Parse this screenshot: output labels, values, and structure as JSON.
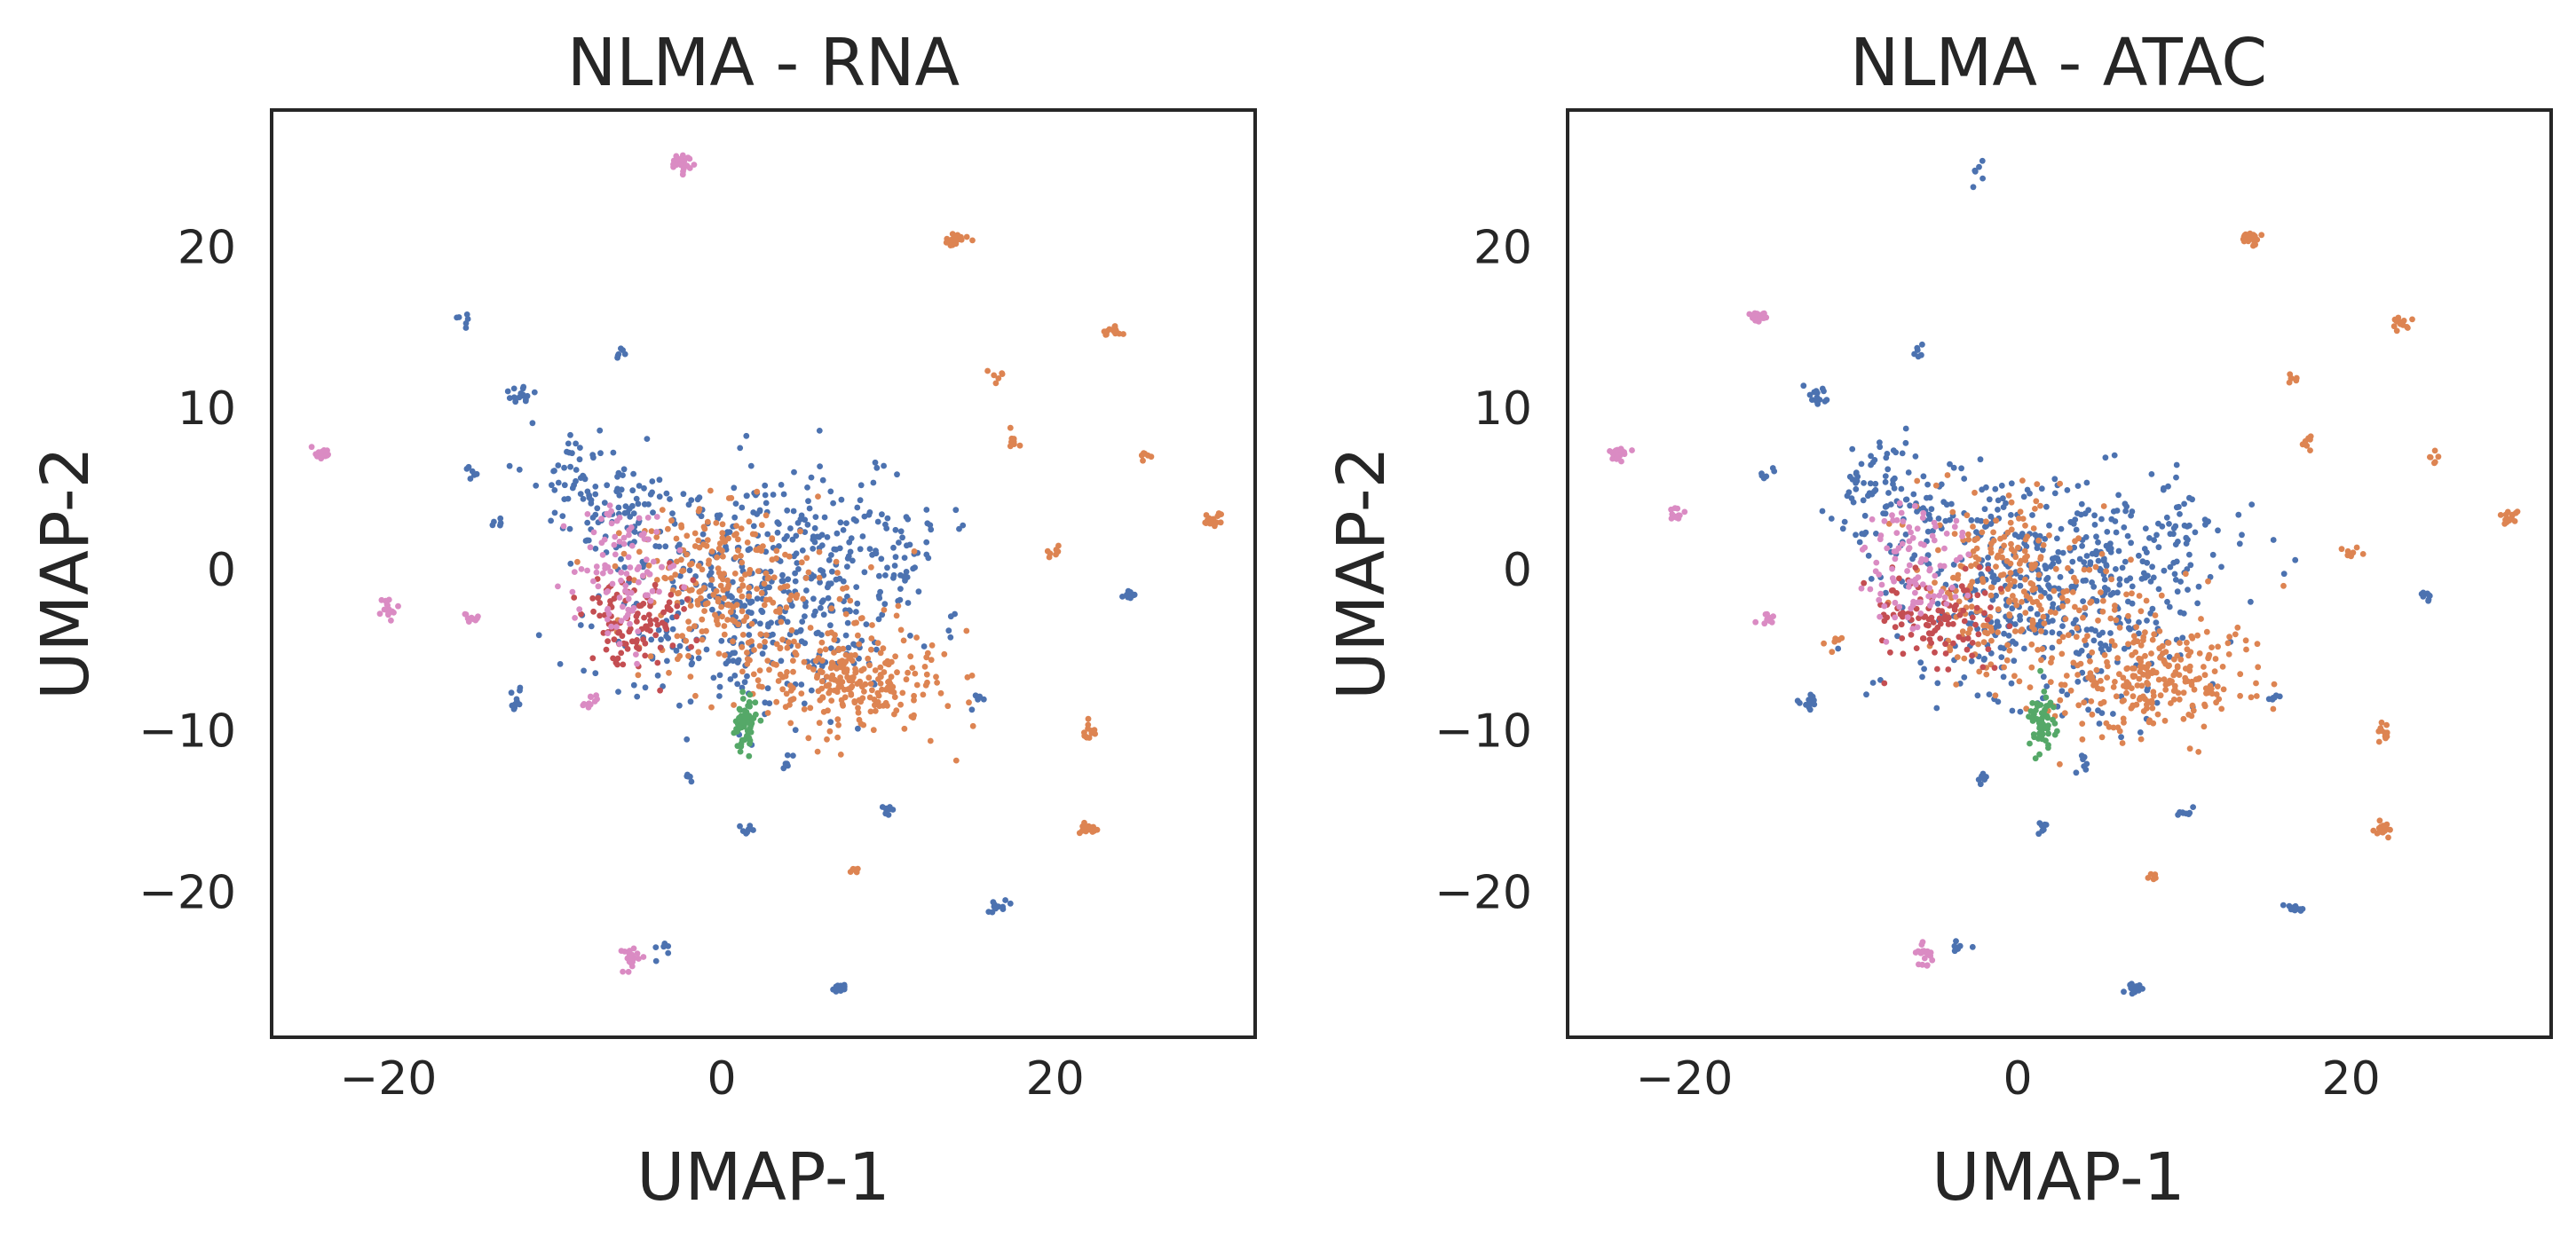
{
  "chart_data": [
    {
      "type": "scatter",
      "title": "NLMA - RNA",
      "xlabel": "UMAP-1",
      "ylabel": "UMAP-2",
      "xlim": [
        -27,
        32
      ],
      "ylim": [
        -29,
        28.5
      ],
      "xticks": [
        -20,
        0,
        20
      ],
      "xtick_labels": [
        "−20",
        "0",
        "20"
      ],
      "yticks": [
        -20,
        -10,
        0,
        10,
        20
      ],
      "ytick_labels": [
        "−20",
        "−10",
        "0",
        "10",
        "20"
      ],
      "grid": false,
      "legend": "none",
      "colors": [
        "#4c72b0",
        "#dd8452",
        "#55a868",
        "#c44e52",
        "#da8bc3"
      ],
      "clusters": [
        {
          "x": 2,
          "y": -2,
          "sx": 4.5,
          "sy": 3.5,
          "n": 420,
          "color": "#4c72b0"
        },
        {
          "x": -5,
          "y": 3,
          "sx": 2.5,
          "sy": 2,
          "n": 70,
          "color": "#4c72b0"
        },
        {
          "x": -8,
          "y": 5,
          "sx": 1.5,
          "sy": 2,
          "n": 60,
          "color": "#4c72b0"
        },
        {
          "x": 8,
          "y": 2,
          "sx": 3.5,
          "sy": 2,
          "n": 90,
          "color": "#4c72b0"
        },
        {
          "x": 8,
          "y": -7,
          "sx": 3,
          "sy": 1.6,
          "n": 230,
          "color": "#dd8452"
        },
        {
          "x": -1,
          "y": 0,
          "sx": 2.5,
          "sy": 2.5,
          "n": 170,
          "color": "#dd8452"
        },
        {
          "x": 3,
          "y": -3,
          "sx": 4,
          "sy": 2.5,
          "n": 110,
          "color": "#dd8452"
        },
        {
          "x": -5,
          "y": -3,
          "sx": 1.8,
          "sy": 1.5,
          "n": 110,
          "color": "#c44e52"
        },
        {
          "x": -6,
          "y": -1,
          "sx": 1.5,
          "sy": 1.5,
          "n": 70,
          "color": "#da8bc3"
        },
        {
          "x": -6,
          "y": 2.5,
          "sx": 1.2,
          "sy": 0.9,
          "n": 30,
          "color": "#da8bc3"
        },
        {
          "x": 1.5,
          "y": -9.5,
          "sx": 0.35,
          "sy": 0.9,
          "n": 60,
          "color": "#55a868"
        },
        {
          "x": -2.5,
          "y": 25.2,
          "sx": 0.3,
          "sy": 0.2,
          "n": 30,
          "color": "#da8bc3"
        },
        {
          "x": 14,
          "y": 20.5,
          "sx": 0.3,
          "sy": 0.2,
          "n": 25,
          "color": "#dd8452"
        },
        {
          "x": -24,
          "y": 7.2,
          "sx": 0.3,
          "sy": 0.2,
          "n": 25,
          "color": "#da8bc3"
        },
        {
          "x": 23.5,
          "y": 14.8,
          "sx": 0.3,
          "sy": 0.2,
          "n": 15,
          "color": "#dd8452"
        },
        {
          "x": 29.5,
          "y": 3,
          "sx": 0.3,
          "sy": 0.2,
          "n": 15,
          "color": "#dd8452"
        },
        {
          "x": -12,
          "y": 10.8,
          "sx": 0.4,
          "sy": 0.3,
          "n": 15,
          "color": "#4c72b0"
        },
        {
          "x": -15.5,
          "y": 15.5,
          "sx": 0.2,
          "sy": 0.2,
          "n": 6,
          "color": "#4c72b0"
        },
        {
          "x": -6,
          "y": 13.5,
          "sx": 0.2,
          "sy": 0.2,
          "n": 6,
          "color": "#4c72b0"
        },
        {
          "x": -20,
          "y": -2.3,
          "sx": 0.3,
          "sy": 0.4,
          "n": 15,
          "color": "#da8bc3"
        },
        {
          "x": -15,
          "y": -3,
          "sx": 0.3,
          "sy": 0.2,
          "n": 10,
          "color": "#da8bc3"
        },
        {
          "x": -12.5,
          "y": -8.2,
          "sx": 0.3,
          "sy": 0.3,
          "n": 12,
          "color": "#4c72b0"
        },
        {
          "x": -15,
          "y": 6,
          "sx": 0.2,
          "sy": 0.2,
          "n": 6,
          "color": "#4c72b0"
        },
        {
          "x": -13.5,
          "y": 2.8,
          "sx": 0.2,
          "sy": 0.2,
          "n": 5,
          "color": "#4c72b0"
        },
        {
          "x": -8,
          "y": -8.2,
          "sx": 0.3,
          "sy": 0.3,
          "n": 10,
          "color": "#da8bc3"
        },
        {
          "x": -5.5,
          "y": -24,
          "sx": 0.3,
          "sy": 0.4,
          "n": 20,
          "color": "#da8bc3"
        },
        {
          "x": 7,
          "y": -26,
          "sx": 0.3,
          "sy": 0.2,
          "n": 15,
          "color": "#4c72b0"
        },
        {
          "x": 1.5,
          "y": -16,
          "sx": 0.2,
          "sy": 0.2,
          "n": 8,
          "color": "#4c72b0"
        },
        {
          "x": 16.5,
          "y": -21,
          "sx": 0.3,
          "sy": 0.2,
          "n": 12,
          "color": "#4c72b0"
        },
        {
          "x": 22,
          "y": -16,
          "sx": 0.3,
          "sy": 0.2,
          "n": 14,
          "color": "#dd8452"
        },
        {
          "x": 22,
          "y": -10,
          "sx": 0.3,
          "sy": 0.3,
          "n": 12,
          "color": "#dd8452"
        },
        {
          "x": 24.5,
          "y": -1.5,
          "sx": 0.2,
          "sy": 0.2,
          "n": 10,
          "color": "#4c72b0"
        },
        {
          "x": 20,
          "y": 1,
          "sx": 0.3,
          "sy": 0.2,
          "n": 8,
          "color": "#dd8452"
        },
        {
          "x": 17.5,
          "y": 8,
          "sx": 0.2,
          "sy": 0.3,
          "n": 8,
          "color": "#dd8452"
        },
        {
          "x": 16.5,
          "y": 12,
          "sx": 0.2,
          "sy": 0.2,
          "n": 6,
          "color": "#dd8452"
        },
        {
          "x": 10,
          "y": -15,
          "sx": 0.3,
          "sy": 0.2,
          "n": 8,
          "color": "#4c72b0"
        },
        {
          "x": 8,
          "y": -18.7,
          "sx": 0.2,
          "sy": 0.2,
          "n": 6,
          "color": "#dd8452"
        },
        {
          "x": 25.5,
          "y": 7,
          "sx": 0.2,
          "sy": 0.2,
          "n": 6,
          "color": "#dd8452"
        },
        {
          "x": 15.5,
          "y": -8,
          "sx": 0.2,
          "sy": 0.3,
          "n": 6,
          "color": "#4c72b0"
        },
        {
          "x": -2,
          "y": -13,
          "sx": 0.2,
          "sy": 0.2,
          "n": 6,
          "color": "#4c72b0"
        },
        {
          "x": 4,
          "y": -12,
          "sx": 0.2,
          "sy": 0.3,
          "n": 6,
          "color": "#4c72b0"
        },
        {
          "x": -3.5,
          "y": -23.5,
          "sx": 0.3,
          "sy": 0.4,
          "n": 6,
          "color": "#4c72b0"
        }
      ]
    },
    {
      "type": "scatter",
      "title": "NLMA - ATAC",
      "xlabel": "UMAP-1",
      "ylabel": "UMAP-2",
      "xlim": [
        -27,
        32
      ],
      "ylim": [
        -29,
        28.5
      ],
      "xticks": [
        -20,
        0,
        20
      ],
      "xtick_labels": [
        "−20",
        "0",
        "20"
      ],
      "yticks": [
        -20,
        -10,
        0,
        10,
        20
      ],
      "ytick_labels": [
        "−20",
        "−10",
        "0",
        "10",
        "20"
      ],
      "grid": false,
      "legend": "none",
      "colors": [
        "#4c72b0",
        "#dd8452",
        "#55a868",
        "#c44e52",
        "#da8bc3"
      ],
      "clusters": [
        {
          "x": 2,
          "y": -2,
          "sx": 4.5,
          "sy": 3.5,
          "n": 420,
          "color": "#4c72b0"
        },
        {
          "x": -5,
          "y": 3,
          "sx": 2.5,
          "sy": 2,
          "n": 70,
          "color": "#4c72b0"
        },
        {
          "x": -8,
          "y": 5,
          "sx": 1.5,
          "sy": 2,
          "n": 60,
          "color": "#4c72b0"
        },
        {
          "x": 8,
          "y": 2,
          "sx": 3.5,
          "sy": 2,
          "n": 90,
          "color": "#4c72b0"
        },
        {
          "x": 8,
          "y": -7,
          "sx": 3,
          "sy": 1.6,
          "n": 230,
          "color": "#dd8452"
        },
        {
          "x": -1,
          "y": 0,
          "sx": 2.5,
          "sy": 2.5,
          "n": 170,
          "color": "#dd8452"
        },
        {
          "x": 3,
          "y": -3,
          "sx": 4,
          "sy": 2.5,
          "n": 110,
          "color": "#dd8452"
        },
        {
          "x": -5,
          "y": -3,
          "sx": 1.8,
          "sy": 1.5,
          "n": 110,
          "color": "#c44e52"
        },
        {
          "x": -6,
          "y": -1,
          "sx": 1.5,
          "sy": 1.5,
          "n": 70,
          "color": "#da8bc3"
        },
        {
          "x": -6,
          "y": 2.5,
          "sx": 1.2,
          "sy": 0.9,
          "n": 30,
          "color": "#da8bc3"
        },
        {
          "x": 1.5,
          "y": -9.5,
          "sx": 0.35,
          "sy": 0.9,
          "n": 60,
          "color": "#55a868"
        },
        {
          "x": -2.5,
          "y": 24.5,
          "sx": 0.4,
          "sy": 0.5,
          "n": 6,
          "color": "#4c72b0"
        },
        {
          "x": 14,
          "y": 20.5,
          "sx": 0.3,
          "sy": 0.2,
          "n": 25,
          "color": "#dd8452"
        },
        {
          "x": -24,
          "y": 7.2,
          "sx": 0.3,
          "sy": 0.2,
          "n": 25,
          "color": "#da8bc3"
        },
        {
          "x": -15.5,
          "y": 15.7,
          "sx": 0.3,
          "sy": 0.2,
          "n": 25,
          "color": "#da8bc3"
        },
        {
          "x": 23,
          "y": 15.2,
          "sx": 0.3,
          "sy": 0.2,
          "n": 15,
          "color": "#dd8452"
        },
        {
          "x": 29.5,
          "y": 3.2,
          "sx": 0.3,
          "sy": 0.2,
          "n": 15,
          "color": "#dd8452"
        },
        {
          "x": -12,
          "y": 10.8,
          "sx": 0.4,
          "sy": 0.3,
          "n": 15,
          "color": "#4c72b0"
        },
        {
          "x": -6,
          "y": 13.5,
          "sx": 0.2,
          "sy": 0.2,
          "n": 6,
          "color": "#4c72b0"
        },
        {
          "x": -20.5,
          "y": 3.5,
          "sx": 0.3,
          "sy": 0.3,
          "n": 12,
          "color": "#da8bc3"
        },
        {
          "x": -15,
          "y": -3,
          "sx": 0.3,
          "sy": 0.2,
          "n": 10,
          "color": "#da8bc3"
        },
        {
          "x": -12.5,
          "y": -8.2,
          "sx": 0.3,
          "sy": 0.3,
          "n": 12,
          "color": "#4c72b0"
        },
        {
          "x": -15,
          "y": 6,
          "sx": 0.2,
          "sy": 0.2,
          "n": 6,
          "color": "#4c72b0"
        },
        {
          "x": -5.5,
          "y": -24,
          "sx": 0.3,
          "sy": 0.4,
          "n": 20,
          "color": "#da8bc3"
        },
        {
          "x": 7,
          "y": -26,
          "sx": 0.3,
          "sy": 0.2,
          "n": 15,
          "color": "#4c72b0"
        },
        {
          "x": 1.5,
          "y": -16,
          "sx": 0.2,
          "sy": 0.2,
          "n": 8,
          "color": "#4c72b0"
        },
        {
          "x": 16.5,
          "y": -21,
          "sx": 0.3,
          "sy": 0.2,
          "n": 12,
          "color": "#4c72b0"
        },
        {
          "x": 22,
          "y": -16,
          "sx": 0.3,
          "sy": 0.2,
          "n": 14,
          "color": "#dd8452"
        },
        {
          "x": 22,
          "y": -10,
          "sx": 0.3,
          "sy": 0.3,
          "n": 12,
          "color": "#dd8452"
        },
        {
          "x": 24.5,
          "y": -1.5,
          "sx": 0.2,
          "sy": 0.2,
          "n": 10,
          "color": "#4c72b0"
        },
        {
          "x": 20,
          "y": 1,
          "sx": 0.3,
          "sy": 0.2,
          "n": 8,
          "color": "#dd8452"
        },
        {
          "x": 17.5,
          "y": 8,
          "sx": 0.2,
          "sy": 0.3,
          "n": 8,
          "color": "#dd8452"
        },
        {
          "x": 16.5,
          "y": 12,
          "sx": 0.2,
          "sy": 0.2,
          "n": 6,
          "color": "#dd8452"
        },
        {
          "x": 10,
          "y": -15,
          "sx": 0.3,
          "sy": 0.2,
          "n": 8,
          "color": "#4c72b0"
        },
        {
          "x": 8,
          "y": -19,
          "sx": 0.2,
          "sy": 0.2,
          "n": 6,
          "color": "#dd8452"
        },
        {
          "x": 25,
          "y": 7,
          "sx": 0.3,
          "sy": 0.2,
          "n": 6,
          "color": "#dd8452"
        },
        {
          "x": 15.5,
          "y": -8,
          "sx": 0.2,
          "sy": 0.3,
          "n": 6,
          "color": "#4c72b0"
        },
        {
          "x": -2,
          "y": -13,
          "sx": 0.2,
          "sy": 0.2,
          "n": 6,
          "color": "#4c72b0"
        },
        {
          "x": 4,
          "y": -12,
          "sx": 0.2,
          "sy": 0.3,
          "n": 6,
          "color": "#4c72b0"
        },
        {
          "x": -3.5,
          "y": -23.5,
          "sx": 0.3,
          "sy": 0.4,
          "n": 6,
          "color": "#4c72b0"
        },
        {
          "x": -11,
          "y": -4.5,
          "sx": 0.3,
          "sy": 0.3,
          "n": 6,
          "color": "#dd8452"
        }
      ]
    }
  ]
}
